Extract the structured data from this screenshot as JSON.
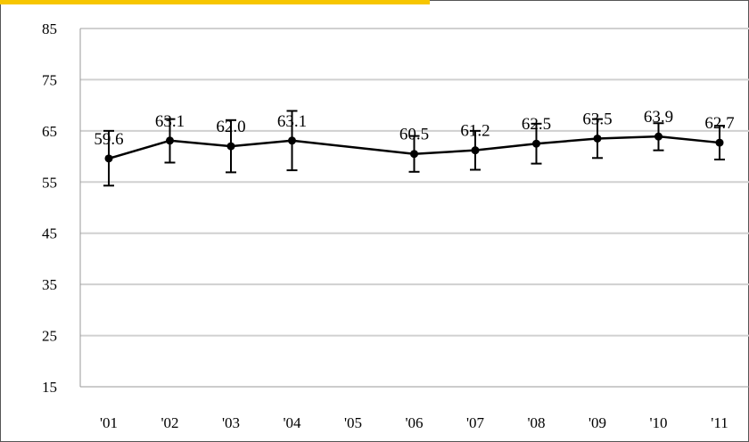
{
  "chart_data": {
    "type": "line",
    "categories": [
      "'01",
      "'02",
      "'03",
      "'04",
      "'05",
      "'06",
      "'07",
      "'08",
      "'09",
      "'10",
      "'11"
    ],
    "series": [
      {
        "values": [
          59.6,
          63.1,
          62.0,
          63.1,
          null,
          60.5,
          61.2,
          62.5,
          63.5,
          63.9,
          62.7
        ],
        "error_low": [
          54.3,
          58.8,
          56.9,
          57.3,
          null,
          57.0,
          57.4,
          58.6,
          59.7,
          61.2,
          59.4
        ],
        "error_high": [
          65.0,
          67.3,
          67.1,
          68.9,
          null,
          64.0,
          65.0,
          66.4,
          67.3,
          66.5,
          66.0
        ],
        "data_labels": [
          "59.6",
          "63.1",
          "62.0",
          "63.1",
          "",
          "60.5",
          "61.2",
          "62.5",
          "63.5",
          "63.9",
          "62.7"
        ]
      }
    ],
    "yticks": [
      "85",
      "75",
      "65",
      "55",
      "45",
      "35",
      "25",
      "15"
    ],
    "ylim": [
      15,
      85
    ],
    "title": "",
    "xlabel": "",
    "ylabel": "",
    "grid": true,
    "colors": {
      "line": "#000000",
      "grid": "#d0d0d0",
      "accent": "#f7c600"
    }
  }
}
